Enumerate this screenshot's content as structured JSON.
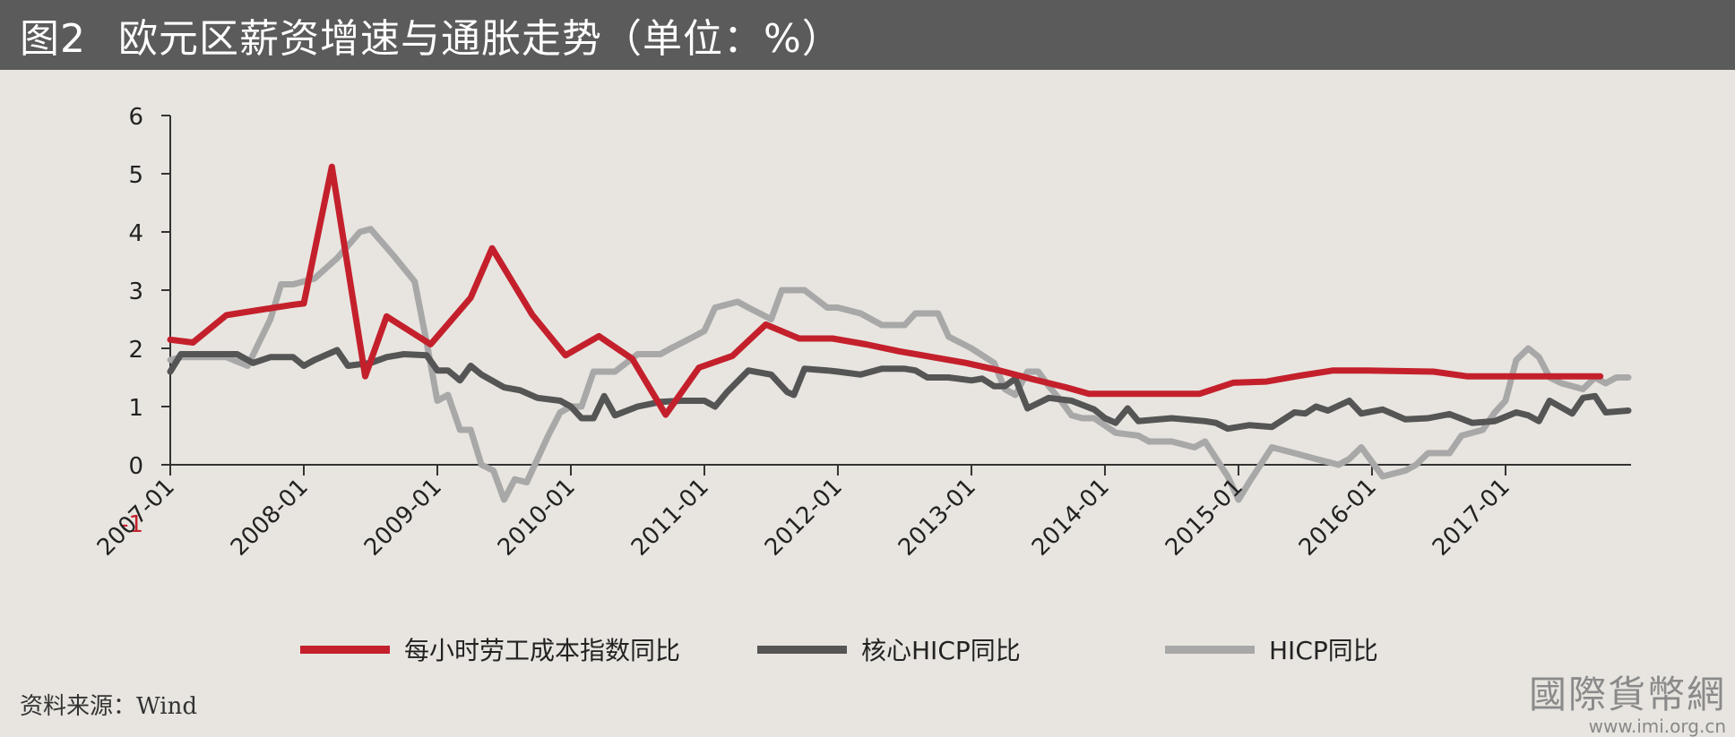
{
  "header": {
    "figure_no": "图2",
    "title": "欧元区薪资增速与通胀走势（单位：%）"
  },
  "colors": {
    "series_1": "#c4202c",
    "series_2": "#555555",
    "series_3": "#a8a8a8",
    "negative_tick": "#c4202c",
    "axis": "#333333"
  },
  "chart_data": {
    "type": "line",
    "title": "欧元区薪资增速与通胀走势（单位：%）",
    "xlabel": "",
    "ylabel": "",
    "ylim": [
      -1,
      6
    ],
    "xlim": [
      2007.0,
      2017.94
    ],
    "y_ticks": [
      "-1",
      "0",
      "1",
      "2",
      "3",
      "4",
      "5",
      "6"
    ],
    "x_ticks": [
      "2007-01",
      "2008-01",
      "2009-01",
      "2010-01",
      "2011-01",
      "2012-01",
      "2013-01",
      "2014-01",
      "2015-01",
      "2016-01",
      "2017-01"
    ],
    "grid": false,
    "legend_position": "bottom",
    "series": [
      {
        "name": "每小时劳工成本指数同比",
        "color": "#c4202c",
        "x": [
          2007.0,
          2007.17,
          2007.42,
          2007.67,
          2007.92,
          2008.0,
          2008.21,
          2008.46,
          2008.62,
          2008.95,
          2009.25,
          2009.41,
          2009.71,
          2009.96,
          2010.21,
          2010.46,
          2010.71,
          2010.96,
          2011.21,
          2011.46,
          2011.71,
          2011.96,
          2012.21,
          2012.46,
          2012.71,
          2012.96,
          2013.21,
          2013.46,
          2013.71,
          2013.88,
          2014.21,
          2014.46,
          2014.71,
          2014.96,
          2015.21,
          2015.46,
          2015.71,
          2015.96,
          2016.21,
          2016.46,
          2016.71,
          2016.96,
          2017.21,
          2017.46,
          2017.71
        ],
        "y": [
          2.15,
          2.1,
          2.57,
          2.66,
          2.75,
          2.77,
          5.12,
          1.52,
          2.55,
          2.07,
          2.87,
          3.72,
          2.58,
          1.88,
          2.21,
          1.82,
          0.86,
          1.67,
          1.87,
          2.41,
          2.17,
          2.17,
          2.07,
          1.95,
          1.85,
          1.75,
          1.62,
          1.47,
          1.33,
          1.22,
          1.22,
          1.22,
          1.22,
          1.41,
          1.43,
          1.53,
          1.62,
          1.62,
          1.61,
          1.6,
          1.52,
          1.52,
          1.52,
          1.52,
          1.52
        ]
      },
      {
        "name": "核心HICP同比",
        "color": "#555555",
        "x": [
          2007.0,
          2007.08,
          2007.25,
          2007.5,
          2007.62,
          2007.75,
          2007.92,
          2008.0,
          2008.08,
          2008.25,
          2008.33,
          2008.5,
          2008.62,
          2008.75,
          2008.92,
          2009.0,
          2009.08,
          2009.17,
          2009.25,
          2009.33,
          2009.5,
          2009.62,
          2009.75,
          2009.92,
          2010.0,
          2010.08,
          2010.17,
          2010.25,
          2010.33,
          2010.5,
          2010.67,
          2010.83,
          2011.0,
          2011.08,
          2011.17,
          2011.33,
          2011.5,
          2011.62,
          2011.67,
          2011.75,
          2011.92,
          2012.0,
          2012.17,
          2012.33,
          2012.5,
          2012.58,
          2012.67,
          2012.83,
          2013.0,
          2013.08,
          2013.17,
          2013.25,
          2013.33,
          2013.42,
          2013.58,
          2013.75,
          2013.92,
          2014.0,
          2014.08,
          2014.17,
          2014.25,
          2014.5,
          2014.75,
          2014.83,
          2014.92,
          2015.08,
          2015.25,
          2015.42,
          2015.5,
          2015.58,
          2015.67,
          2015.83,
          2015.92,
          2016.08,
          2016.25,
          2016.42,
          2016.58,
          2016.75,
          2016.92,
          2017.08,
          2017.17,
          2017.25,
          2017.33,
          2017.5,
          2017.58,
          2017.67,
          2017.75,
          2017.92
        ],
        "y": [
          1.6,
          1.9,
          1.9,
          1.9,
          1.75,
          1.85,
          1.85,
          1.7,
          1.8,
          1.97,
          1.7,
          1.75,
          1.85,
          1.9,
          1.88,
          1.62,
          1.62,
          1.45,
          1.7,
          1.55,
          1.33,
          1.28,
          1.15,
          1.1,
          1.0,
          0.8,
          0.8,
          1.18,
          0.85,
          1.0,
          1.08,
          1.1,
          1.1,
          1.0,
          1.25,
          1.62,
          1.55,
          1.25,
          1.2,
          1.65,
          1.62,
          1.6,
          1.55,
          1.65,
          1.65,
          1.62,
          1.5,
          1.5,
          1.45,
          1.48,
          1.35,
          1.35,
          1.48,
          0.97,
          1.15,
          1.1,
          0.95,
          0.8,
          0.72,
          0.97,
          0.75,
          0.8,
          0.75,
          0.72,
          0.62,
          0.68,
          0.65,
          0.9,
          0.88,
          1.0,
          0.93,
          1.1,
          0.88,
          0.95,
          0.78,
          0.8,
          0.87,
          0.72,
          0.75,
          0.9,
          0.85,
          0.75,
          1.1,
          0.88,
          1.15,
          1.18,
          0.9,
          0.93
        ]
      },
      {
        "name": "HICP同比",
        "color": "#a8a8a8",
        "x": [
          2007.0,
          2007.08,
          2007.25,
          2007.42,
          2007.58,
          2007.75,
          2007.83,
          2007.92,
          2008.08,
          2008.25,
          2008.42,
          2008.5,
          2008.67,
          2008.83,
          2008.92,
          2009.0,
          2009.08,
          2009.17,
          2009.25,
          2009.33,
          2009.42,
          2009.5,
          2009.58,
          2009.67,
          2009.83,
          2009.92,
          2010.0,
          2010.08,
          2010.17,
          2010.25,
          2010.33,
          2010.5,
          2010.67,
          2010.75,
          2010.92,
          2011.0,
          2011.08,
          2011.25,
          2011.33,
          2011.5,
          2011.58,
          2011.67,
          2011.75,
          2011.92,
          2012.0,
          2012.17,
          2012.33,
          2012.5,
          2012.58,
          2012.75,
          2012.83,
          2013.0,
          2013.17,
          2013.25,
          2013.33,
          2013.42,
          2013.5,
          2013.58,
          2013.67,
          2013.75,
          2013.83,
          2013.92,
          2014.08,
          2014.25,
          2014.33,
          2014.5,
          2014.67,
          2014.75,
          2014.92,
          2015.0,
          2015.08,
          2015.25,
          2015.42,
          2015.58,
          2015.75,
          2015.83,
          2015.92,
          2016.08,
          2016.25,
          2016.33,
          2016.42,
          2016.58,
          2016.67,
          2016.83,
          2016.92,
          2017.0,
          2017.08,
          2017.17,
          2017.25,
          2017.33,
          2017.42,
          2017.58,
          2017.67,
          2017.75,
          2017.83,
          2017.92
        ],
        "y": [
          1.8,
          1.85,
          1.85,
          1.85,
          1.7,
          2.5,
          3.1,
          3.1,
          3.2,
          3.55,
          4.0,
          4.05,
          3.6,
          3.15,
          2.1,
          1.1,
          1.2,
          0.6,
          0.6,
          0.0,
          -0.1,
          -0.6,
          -0.25,
          -0.3,
          0.5,
          0.9,
          1.0,
          1.0,
          1.6,
          1.6,
          1.6,
          1.9,
          1.9,
          2.0,
          2.2,
          2.3,
          2.7,
          2.8,
          2.7,
          2.5,
          3.0,
          3.0,
          3.0,
          2.7,
          2.7,
          2.6,
          2.4,
          2.4,
          2.6,
          2.6,
          2.2,
          2.0,
          1.75,
          1.3,
          1.2,
          1.6,
          1.6,
          1.35,
          1.1,
          0.85,
          0.8,
          0.8,
          0.55,
          0.5,
          0.4,
          0.4,
          0.3,
          0.4,
          -0.2,
          -0.6,
          -0.3,
          0.3,
          0.2,
          0.1,
          0.0,
          0.1,
          0.3,
          -0.2,
          -0.1,
          0.0,
          0.2,
          0.2,
          0.5,
          0.6,
          0.9,
          1.1,
          1.8,
          2.0,
          1.85,
          1.5,
          1.4,
          1.3,
          1.5,
          1.4,
          1.5,
          1.5
        ]
      }
    ]
  },
  "legend": {
    "items": [
      {
        "label": "每小时劳工成本指数同比"
      },
      {
        "label": "核心HICP同比"
      },
      {
        "label": "HICP同比"
      }
    ]
  },
  "footer": {
    "source": "资料来源：Wind"
  },
  "watermark": {
    "main": "國際貨幣網",
    "url": "www.imi.org.cn"
  }
}
